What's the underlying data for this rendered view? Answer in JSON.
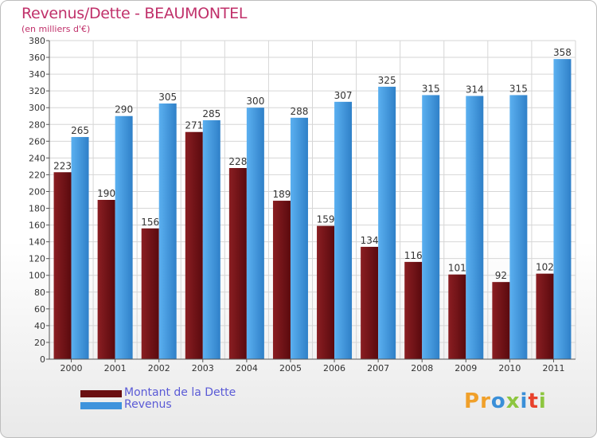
{
  "title": "Revenus/Dette - BEAUMONTEL",
  "subtitle": "(en milliers d'€)",
  "legend": [
    {
      "label": "Montant de la Dette",
      "color": "#6a0f12"
    },
    {
      "label": "Revenus",
      "color": "#3e93dc"
    }
  ],
  "logo": {
    "letters": [
      "P",
      "r",
      "o",
      "x",
      "i",
      "t",
      "i"
    ],
    "colors": [
      "#f0a02a",
      "#f0a02a",
      "#3a8fd8",
      "#8dc63f",
      "#3a8fd8",
      "#e8412c",
      "#8dc63f"
    ]
  },
  "chart_data": {
    "type": "bar",
    "categories": [
      "2000",
      "2001",
      "2002",
      "2003",
      "2004",
      "2005",
      "2006",
      "2007",
      "2008",
      "2009",
      "2010",
      "2011"
    ],
    "series": [
      {
        "name": "Montant de la Dette",
        "color": "#6a0f12",
        "values": [
          223,
          190,
          156,
          271,
          228,
          189,
          159,
          134,
          116,
          101,
          92,
          102
        ]
      },
      {
        "name": "Revenus",
        "color": "#3e93dc",
        "values": [
          265,
          290,
          305,
          285,
          300,
          288,
          307,
          325,
          315,
          314,
          315,
          358
        ]
      }
    ],
    "ylim": [
      0,
      380
    ],
    "ytick_step": 20,
    "grid": true,
    "legend_position": "bottom-left"
  }
}
